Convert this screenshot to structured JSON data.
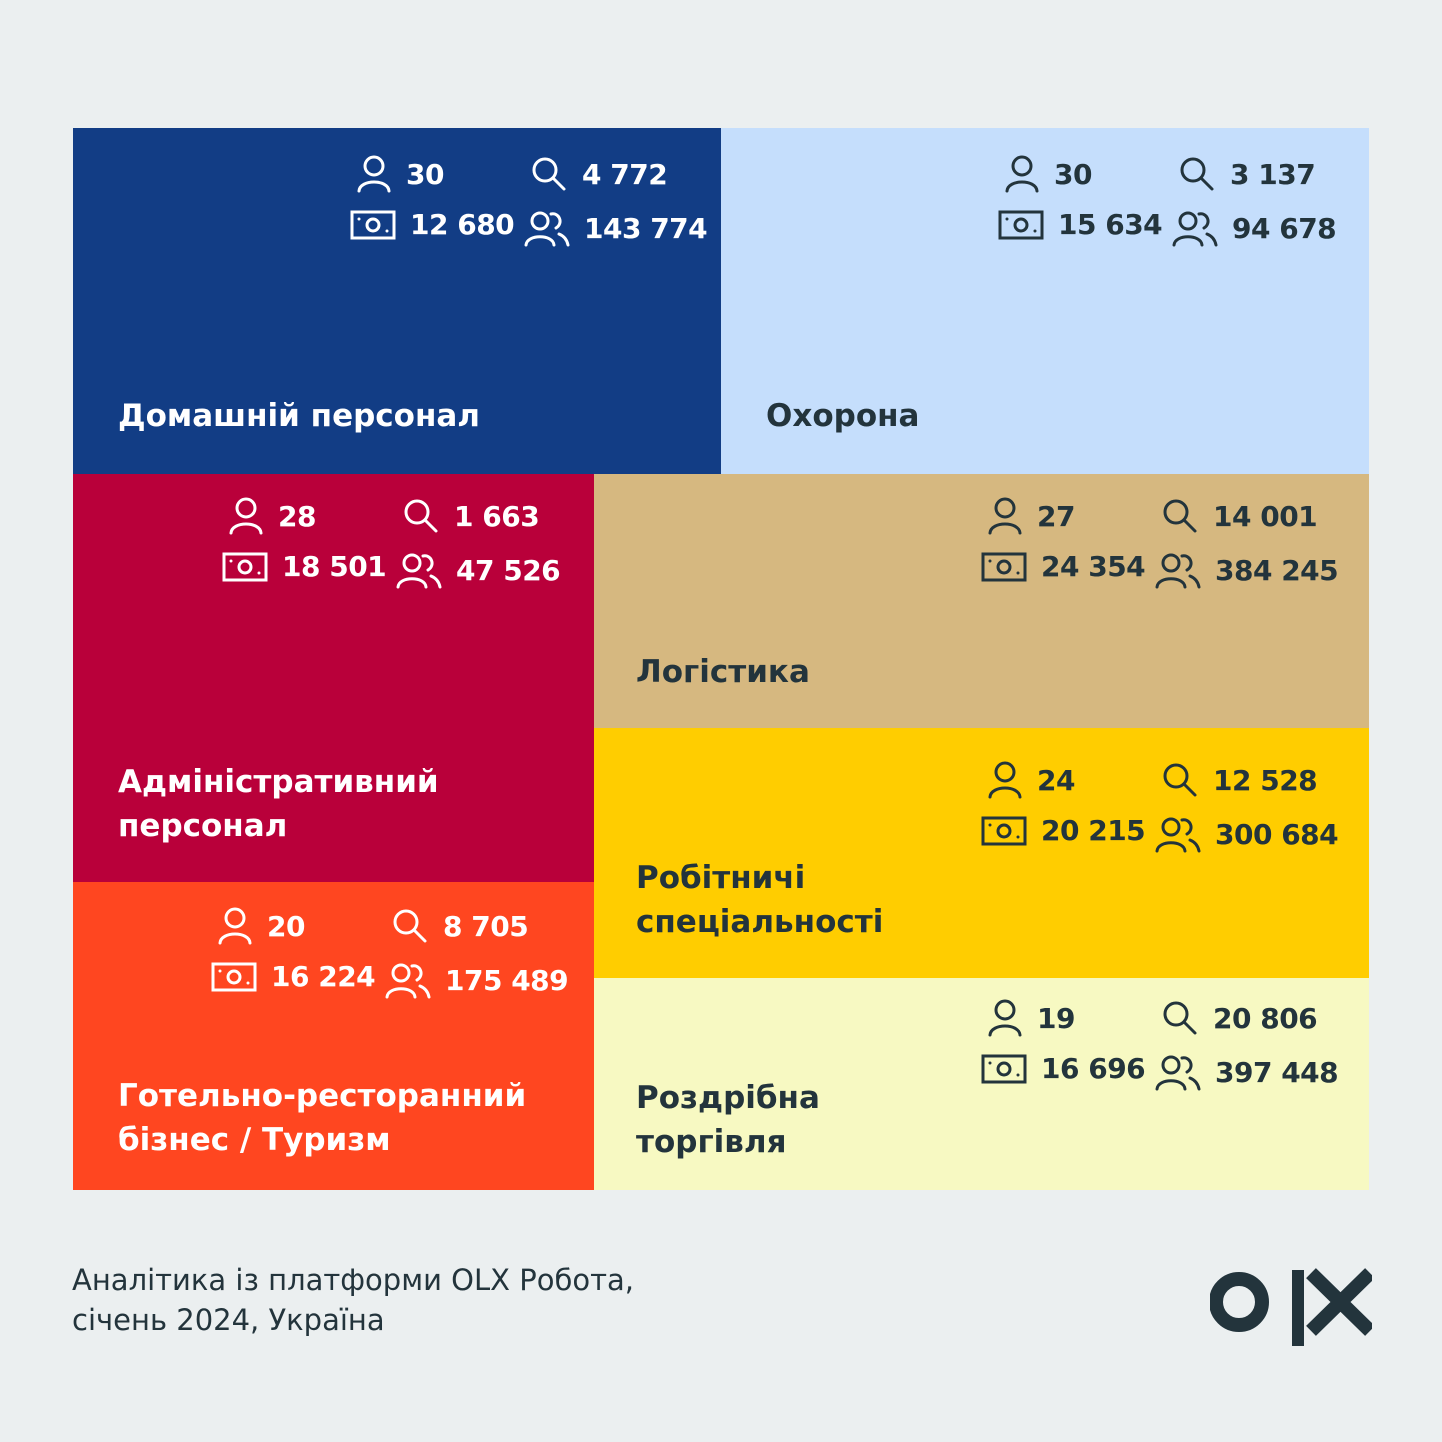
{
  "colors": {
    "background": "#EBEFF0",
    "text_dark": "#23343C",
    "text_light": "#FFFFFF"
  },
  "chart_data": {
    "type": "treemap",
    "metrics": [
      "users-icon",
      "search-icon",
      "money-icon",
      "group-icon"
    ],
    "tiles": [
      {
        "name": "Домашній персонал",
        "color": "#123D85",
        "text": "light",
        "values": {
          "person": "30",
          "search": "4 772",
          "money": "12 680",
          "group": "143 774"
        }
      },
      {
        "name": "Охорона",
        "color": "#C5DEFC",
        "text": "dark",
        "values": {
          "person": "30",
          "search": "3 137",
          "money": "15 634",
          "group": "94 678"
        }
      },
      {
        "name": "Адміністративний\nперсонал",
        "color": "#B9003A",
        "text": "light",
        "values": {
          "person": "28",
          "search": "1 663",
          "money": "18 501",
          "group": "47 526"
        }
      },
      {
        "name": "Логістика",
        "color": "#D6B880",
        "text": "dark",
        "values": {
          "person": "27",
          "search": "14 001",
          "money": "24 354",
          "group": "384 245"
        }
      },
      {
        "name": "Робітничі\nспеціальності",
        "color": "#FFCD00",
        "text": "dark",
        "values": {
          "person": "24",
          "search": "12 528",
          "money": "20 215",
          "group": "300 684"
        }
      },
      {
        "name": "Готельно-ресторанний\nбізнес / Туризм",
        "color": "#FF4620",
        "text": "light",
        "values": {
          "person": "20",
          "search": "8 705",
          "money": "16 224",
          "group": "175 489"
        }
      },
      {
        "name": "Роздрібна\nторгівля",
        "color": "#F7F9C2",
        "text": "dark",
        "values": {
          "person": "19",
          "search": "20 806",
          "money": "16 696",
          "group": "397 448"
        }
      }
    ]
  },
  "footer": {
    "source_line1": "Аналітика із платформи OLX Робота,",
    "source_line2": "січень 2024, Україна"
  },
  "logo": {
    "icon": "olx-logo-icon",
    "text": "OLX"
  }
}
